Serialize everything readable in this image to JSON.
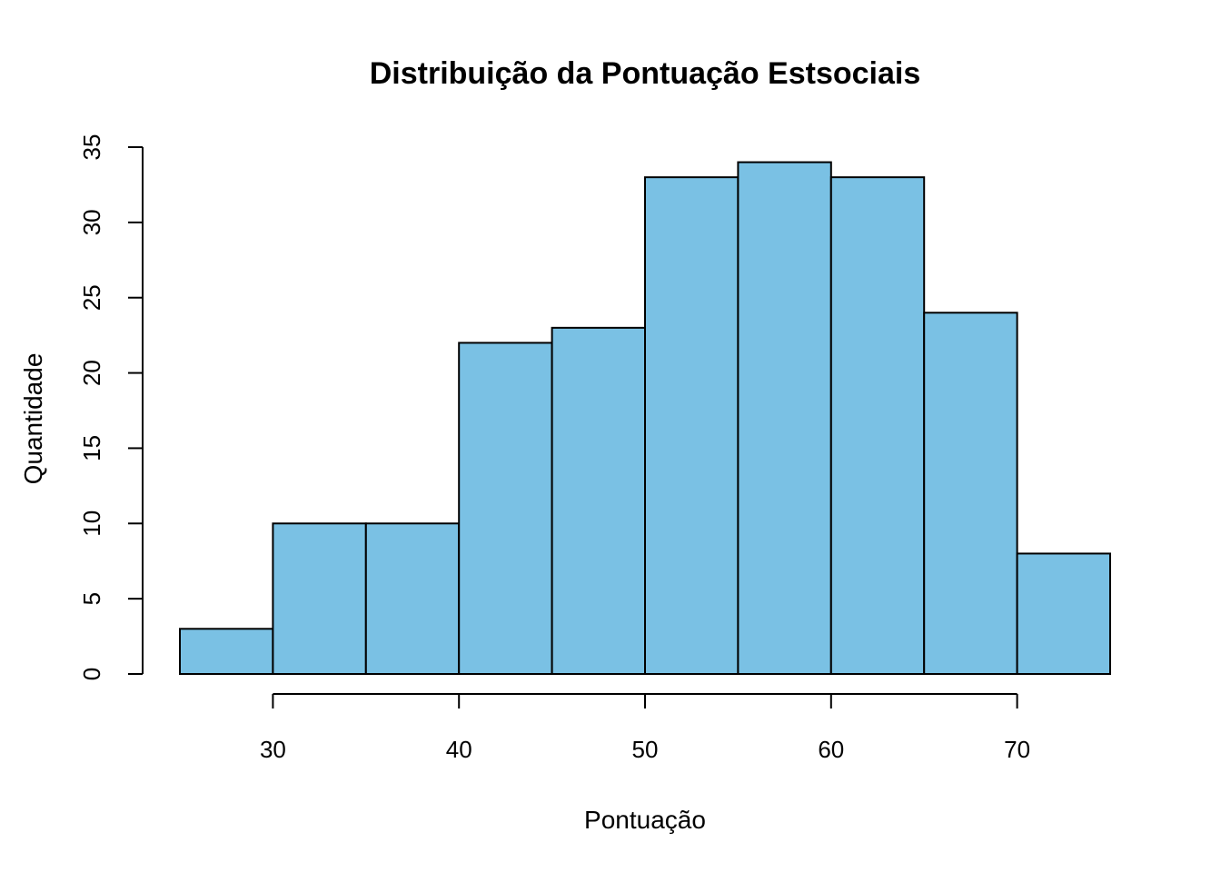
{
  "chart_data": {
    "type": "bar",
    "subtype": "histogram",
    "title": "Distribuição da Pontuação Estsociais",
    "xlabel": "Pontuação",
    "ylabel": "Quantidade",
    "bins": [
      {
        "start": 25,
        "end": 30,
        "count": 3
      },
      {
        "start": 30,
        "end": 35,
        "count": 10
      },
      {
        "start": 35,
        "end": 40,
        "count": 10
      },
      {
        "start": 40,
        "end": 45,
        "count": 22
      },
      {
        "start": 45,
        "end": 50,
        "count": 23
      },
      {
        "start": 50,
        "end": 55,
        "count": 33
      },
      {
        "start": 55,
        "end": 60,
        "count": 34
      },
      {
        "start": 60,
        "end": 65,
        "count": 33
      },
      {
        "start": 65,
        "end": 70,
        "count": 24
      },
      {
        "start": 70,
        "end": 75,
        "count": 8
      }
    ],
    "xticks": [
      30,
      40,
      50,
      60,
      70
    ],
    "yticks": [
      0,
      5,
      10,
      15,
      20,
      25,
      30,
      35
    ],
    "xlim": [
      25,
      75
    ],
    "ylim": [
      0,
      35
    ],
    "bar_color": "#7AC1E4",
    "grid": false,
    "legend": "none"
  }
}
